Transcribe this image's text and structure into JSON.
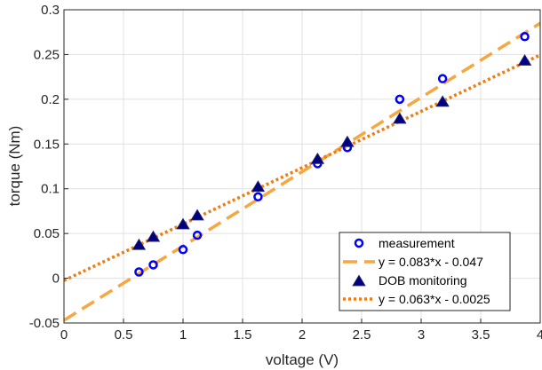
{
  "chart_data": {
    "type": "scatter",
    "xlabel": "voltage (V)",
    "ylabel": "torque (Nm)",
    "xlim": [
      0,
      4
    ],
    "ylim": [
      -0.05,
      0.3
    ],
    "xticks": [
      "0",
      "0.5",
      "1",
      "1.5",
      "2",
      "2.5",
      "3",
      "3.5",
      "4"
    ],
    "yticks": [
      "-0.05",
      "0",
      "0.05",
      "0.1",
      "0.15",
      "0.2",
      "0.25",
      "0.3"
    ],
    "grid": true,
    "legend_position": "bottom-right",
    "series": [
      {
        "name": "measurement",
        "kind": "scatter",
        "marker": "circle",
        "color": "#0000ff",
        "x": [
          0.63,
          0.75,
          1.0,
          1.12,
          1.63,
          2.13,
          2.38,
          2.82,
          3.18,
          3.87
        ],
        "y": [
          0.007,
          0.015,
          0.032,
          0.048,
          0.091,
          0.128,
          0.146,
          0.2,
          0.223,
          0.27
        ]
      },
      {
        "name": "y = 0.083*x - 0.047",
        "kind": "line",
        "dash": "dashed",
        "color": "#f5a742",
        "slope": 0.083,
        "intercept": -0.047
      },
      {
        "name": "DOB monitoring",
        "kind": "scatter",
        "marker": "triangle",
        "color": "#000080",
        "edge_color": "#1f1f6e",
        "x": [
          0.63,
          0.75,
          1.0,
          1.12,
          1.63,
          2.13,
          2.38,
          2.82,
          3.18,
          3.87
        ],
        "y": [
          0.037,
          0.046,
          0.06,
          0.07,
          0.102,
          0.133,
          0.152,
          0.178,
          0.197,
          0.243
        ]
      },
      {
        "name": "y = 0.063*x - 0.0025",
        "kind": "line",
        "dash": "dotted",
        "color": "#f07c12",
        "slope": 0.063,
        "intercept": -0.0025
      }
    ]
  }
}
